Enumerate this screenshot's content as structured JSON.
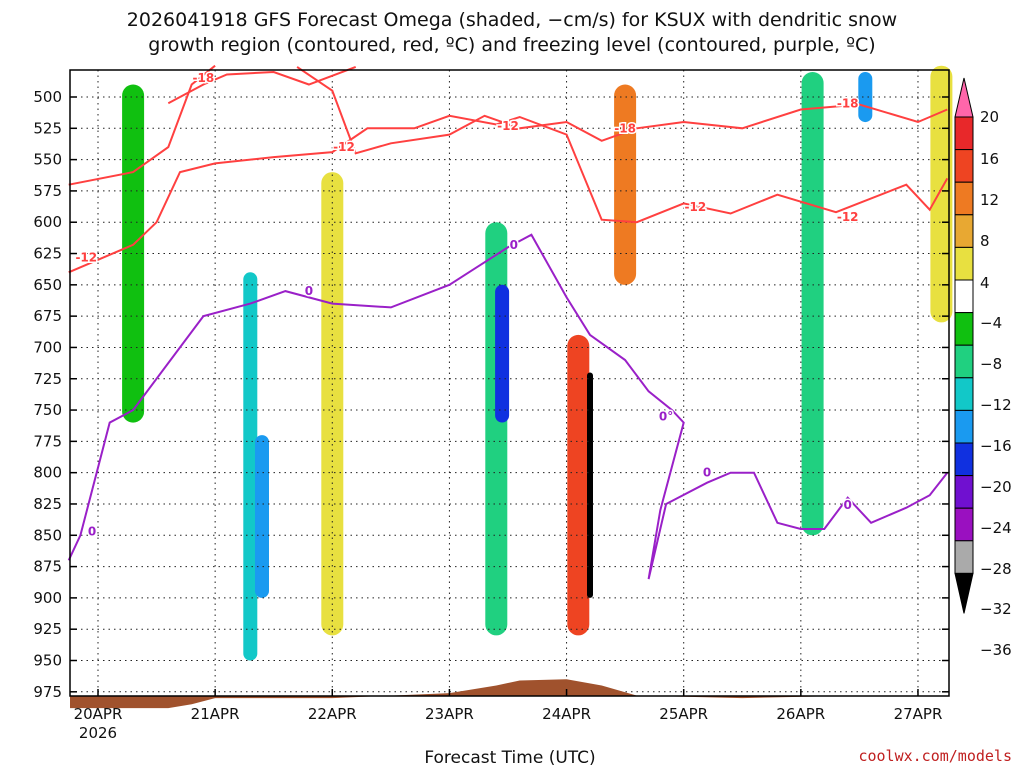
{
  "chart_data": {
    "type": "heatmap",
    "title_line1": "2026041918 GFS Forecast Omega (shaded, −cm/s) for KSUX with dendritic snow",
    "title_line2": "growth region (contoured, red, ºC) and freezing level (contoured, purple, ºC)",
    "xlabel": "Forecast Time (UTC)",
    "x_ticks": [
      "20APR",
      "21APR",
      "22APR",
      "23APR",
      "24APR",
      "25APR",
      "26APR",
      "27APR"
    ],
    "x_year": "2026",
    "x_range_days": [
      -0.25,
      7.25
    ],
    "y_ticks": [
      "500",
      "525",
      "550",
      "575",
      "600",
      "625",
      "650",
      "675",
      "700",
      "725",
      "750",
      "775",
      "800",
      "825",
      "850",
      "875",
      "900",
      "925",
      "950",
      "975"
    ],
    "y_range_hpa": [
      475,
      990
    ],
    "colorbar": {
      "labels": [
        "20",
        "16",
        "12",
        "8",
        "4",
        "−4",
        "−8",
        "−12",
        "−16",
        "−20",
        "−24",
        "−28",
        "−32",
        "−36"
      ],
      "colors": [
        "#ff66aa",
        "#e8282a",
        "#ee4422",
        "#ee7a22",
        "#e8a832",
        "#e8e040",
        "#ffffff",
        "#10c010",
        "#20d080",
        "#12c8c8",
        "#1a9af0",
        "#1030e0",
        "#7010d0",
        "#9a10c0",
        "#aaaaaa",
        "#000000"
      ]
    },
    "contours": {
      "red": {
        "name": "dendritic snow growth region",
        "color": "#ff4040",
        "labels": [
          "-18",
          "-12",
          "-12",
          "-12",
          "-18",
          "-12",
          "-18",
          "-12"
        ],
        "levels_hpa": {
          "minus12_lower": [
            [
              -0.25,
              640
            ],
            [
              0.3,
              618
            ],
            [
              0.5,
              600
            ],
            [
              0.7,
              560
            ],
            [
              1.0,
              553
            ],
            [
              1.5,
              548
            ],
            [
              2.0,
              544
            ],
            [
              2.3,
              525
            ],
            [
              2.7,
              525
            ],
            [
              3.0,
              515
            ],
            [
              3.4,
              522
            ],
            [
              3.6,
              516
            ],
            [
              4.0,
              530
            ],
            [
              4.3,
              598
            ],
            [
              4.6,
              600
            ],
            [
              5.0,
              585
            ],
            [
              5.4,
              593
            ],
            [
              5.8,
              578
            ],
            [
              6.3,
              592
            ],
            [
              6.9,
              570
            ],
            [
              7.1,
              590
            ],
            [
              7.25,
              565
            ]
          ],
          "minus12_upper": [
            [
              -0.25,
              570
            ],
            [
              0.3,
              560
            ],
            [
              0.6,
              540
            ],
            [
              0.8,
              490
            ],
            [
              1.0,
              475
            ]
          ],
          "minus12_mid": [
            [
              1.7,
              476
            ],
            [
              2.0,
              495
            ],
            [
              2.2,
              545
            ],
            [
              2.5,
              537
            ],
            [
              3.0,
              530
            ],
            [
              3.3,
              515
            ],
            [
              3.6,
              525
            ],
            [
              4.0,
              520
            ],
            [
              4.3,
              535
            ],
            [
              4.6,
              525
            ],
            [
              5.0,
              520
            ],
            [
              5.5,
              525
            ],
            [
              6.0,
              510
            ],
            [
              6.5,
              506
            ],
            [
              7.0,
              520
            ],
            [
              7.25,
              510
            ]
          ],
          "minus18": [
            [
              0.6,
              505
            ],
            [
              0.9,
              490
            ],
            [
              1.1,
              482
            ],
            [
              1.5,
              480
            ],
            [
              1.8,
              490
            ],
            [
              2.2,
              476
            ]
          ]
        }
      },
      "purple": {
        "name": "freezing level",
        "color": "#9a20c8",
        "labels": [
          "0",
          "0",
          "0",
          "0°",
          "0",
          "0"
        ],
        "levels_hpa": [
          [
            -0.25,
            870
          ],
          [
            -0.15,
            850
          ],
          [
            0.1,
            760
          ],
          [
            0.3,
            750
          ],
          [
            0.7,
            700
          ],
          [
            0.9,
            675
          ],
          [
            1.3,
            665
          ],
          [
            1.6,
            655
          ],
          [
            2.0,
            665
          ],
          [
            2.5,
            668
          ],
          [
            3.0,
            650
          ],
          [
            3.2,
            638
          ],
          [
            3.5,
            620
          ],
          [
            3.7,
            610
          ],
          [
            4.0,
            660
          ],
          [
            4.2,
            690
          ],
          [
            4.5,
            710
          ],
          [
            4.7,
            735
          ],
          [
            4.9,
            750
          ],
          [
            5.0,
            760
          ],
          [
            4.8,
            830
          ],
          [
            4.7,
            885
          ],
          [
            4.85,
            825
          ],
          [
            5.2,
            808
          ],
          [
            5.4,
            800
          ],
          [
            5.6,
            800
          ],
          [
            5.8,
            840
          ],
          [
            6.0,
            845
          ],
          [
            6.2,
            845
          ],
          [
            6.4,
            820
          ],
          [
            6.6,
            840
          ],
          [
            6.9,
            828
          ],
          [
            7.1,
            818
          ],
          [
            7.25,
            800
          ]
        ]
      }
    },
    "terrain_color": "#a0522d",
    "omega_features": [
      {
        "day": 0.3,
        "p_top": 490,
        "p_bot": 760,
        "value": -6
      },
      {
        "day": 1.3,
        "p_top": 640,
        "p_bot": 950,
        "value": -14
      },
      {
        "day": 1.4,
        "p_top": 770,
        "p_bot": 900,
        "value": -16
      },
      {
        "day": 2.0,
        "p_top": 560,
        "p_bot": 930,
        "value": 5
      },
      {
        "day": 3.4,
        "p_top": 600,
        "p_bot": 930,
        "value": -10
      },
      {
        "day": 3.45,
        "p_top": 650,
        "p_bot": 760,
        "value": -20
      },
      {
        "day": 4.1,
        "p_top": 690,
        "p_bot": 930,
        "value": 12
      },
      {
        "day": 4.1,
        "p_top": 740,
        "p_bot": 800,
        "value": 14
      },
      {
        "day": 4.2,
        "p_top": 720,
        "p_bot": 900,
        "value": -36
      },
      {
        "day": 4.5,
        "p_top": 490,
        "p_bot": 650,
        "value": 10
      },
      {
        "day": 6.1,
        "p_top": 480,
        "p_bot": 850,
        "value": -8
      },
      {
        "day": 6.55,
        "p_top": 480,
        "p_bot": 520,
        "value": -16
      },
      {
        "day": 7.2,
        "p_top": 475,
        "p_bot": 680,
        "value": 5
      }
    ]
  },
  "credit": "coolwx.com/models"
}
